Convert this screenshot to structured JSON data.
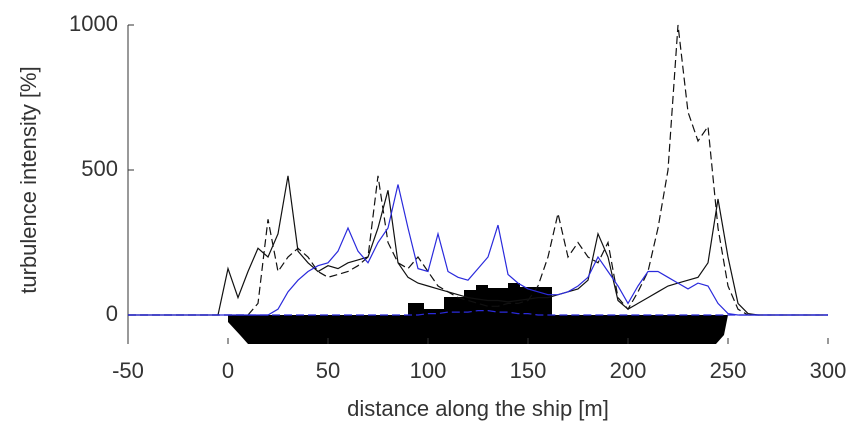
{
  "chart_data": {
    "type": "line",
    "xlabel": "distance along the ship [m]",
    "ylabel": "turbulence intensity [%]",
    "x": [
      -50,
      -45,
      -40,
      -35,
      -30,
      -25,
      -20,
      -15,
      -10,
      -5,
      0,
      5,
      10,
      15,
      20,
      25,
      30,
      35,
      40,
      45,
      50,
      55,
      60,
      65,
      70,
      75,
      80,
      85,
      90,
      95,
      100,
      105,
      110,
      115,
      120,
      125,
      130,
      135,
      140,
      145,
      150,
      155,
      160,
      165,
      170,
      175,
      180,
      185,
      190,
      195,
      200,
      205,
      210,
      215,
      220,
      225,
      230,
      235,
      240,
      245,
      250,
      255,
      260,
      265,
      270,
      275,
      280,
      285,
      290,
      295,
      300
    ],
    "series": [
      {
        "color": "#111111",
        "dash": false,
        "values": [
          0,
          0,
          0,
          0,
          0,
          0,
          0,
          0,
          0,
          0,
          160,
          60,
          150,
          230,
          200,
          280,
          480,
          220,
          180,
          150,
          170,
          160,
          180,
          190,
          200,
          300,
          430,
          180,
          130,
          110,
          100,
          90,
          80,
          70,
          60,
          55,
          50,
          50,
          45,
          50,
          55,
          60,
          60,
          70,
          80,
          90,
          120,
          280,
          200,
          50,
          20,
          40,
          60,
          80,
          100,
          110,
          120,
          130,
          180,
          400,
          200,
          40,
          5,
          0,
          0,
          0,
          0,
          0,
          0,
          0,
          0
        ]
      },
      {
        "color": "#111111",
        "dash": true,
        "values": [
          0,
          0,
          0,
          0,
          0,
          0,
          0,
          0,
          0,
          0,
          0,
          0,
          0,
          40,
          330,
          150,
          200,
          230,
          200,
          150,
          130,
          140,
          150,
          170,
          200,
          480,
          250,
          180,
          160,
          200,
          150,
          100,
          80,
          60,
          50,
          40,
          30,
          30,
          40,
          40,
          50,
          100,
          200,
          350,
          200,
          250,
          200,
          180,
          250,
          60,
          20,
          80,
          150,
          300,
          500,
          1000,
          700,
          600,
          650,
          300,
          100,
          20,
          0,
          0,
          0,
          0,
          0,
          0,
          0,
          0,
          0
        ]
      },
      {
        "color": "#2a2adc",
        "dash": false,
        "values": [
          0,
          0,
          0,
          0,
          0,
          0,
          0,
          0,
          0,
          0,
          0,
          0,
          0,
          0,
          0,
          20,
          80,
          120,
          150,
          170,
          180,
          220,
          300,
          220,
          180,
          250,
          300,
          450,
          300,
          160,
          150,
          280,
          150,
          130,
          120,
          160,
          200,
          310,
          140,
          110,
          90,
          80,
          70,
          70,
          80,
          100,
          130,
          200,
          150,
          100,
          40,
          100,
          150,
          150,
          130,
          110,
          90,
          110,
          100,
          40,
          5,
          0,
          0,
          0,
          0,
          0,
          0,
          0,
          0,
          0,
          0
        ]
      },
      {
        "color": "#2a2adc",
        "dash": true,
        "values": [
          0,
          0,
          0,
          0,
          0,
          0,
          0,
          0,
          0,
          0,
          0,
          0,
          0,
          0,
          0,
          0,
          0,
          0,
          0,
          0,
          0,
          0,
          0,
          0,
          0,
          0,
          0,
          0,
          0,
          0,
          5,
          5,
          10,
          10,
          10,
          15,
          15,
          10,
          10,
          5,
          5,
          0,
          0,
          0,
          0,
          0,
          0,
          0,
          0,
          0,
          0,
          0,
          0,
          0,
          0,
          0,
          0,
          0,
          0,
          0,
          0,
          0,
          0,
          0,
          0,
          0,
          0,
          0,
          0,
          0,
          0
        ]
      }
    ],
    "xlim": [
      -50,
      300
    ],
    "xticks": [
      -50,
      0,
      50,
      100,
      150,
      200,
      250,
      300
    ],
    "ylim": [
      -100,
      1000
    ],
    "yticks": [
      0,
      500,
      1000
    ]
  }
}
